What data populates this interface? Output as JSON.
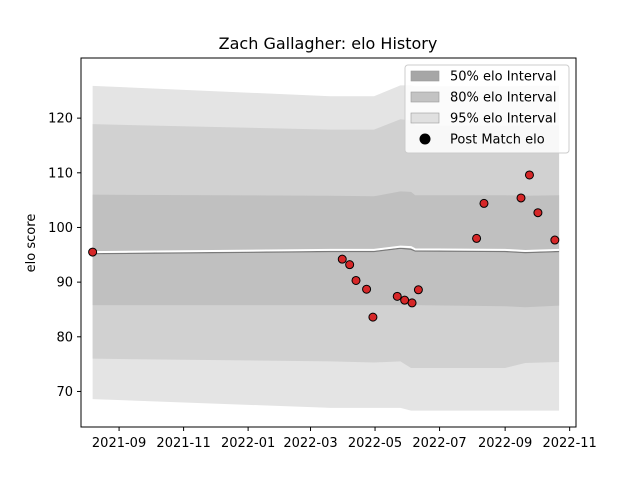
{
  "chart_data": {
    "type": "line",
    "title": "Zach Gallagher: elo History",
    "xlabel": "",
    "ylabel": "elo score",
    "xlim": [
      "2021-07-27",
      "2022-11-07"
    ],
    "ylim": [
      63.5,
      131
    ],
    "x_ticks": [
      "2021-09",
      "2021-11",
      "2022-01",
      "2022-03",
      "2022-05",
      "2022-07",
      "2022-09",
      "2022-11"
    ],
    "y_ticks": [
      70,
      80,
      90,
      100,
      110,
      120
    ],
    "grid": false,
    "legend_position": "top-right",
    "bands": {
      "x": [
        "2021-08-07",
        "2022-03-20",
        "2022-04-30",
        "2022-05-25",
        "2022-06-04",
        "2022-06-08",
        "2022-09-01",
        "2022-09-20",
        "2022-10-22"
      ],
      "mean": [
        95.5,
        95.9,
        95.9,
        96.5,
        96.4,
        96.0,
        95.9,
        95.7,
        95.9
      ],
      "p50_lower": [
        95.2,
        95.6,
        95.6,
        96.2,
        96.0,
        95.7,
        95.6,
        95.4,
        95.6
      ],
      "p50_upper": [
        106.0,
        105.8,
        105.7,
        106.6,
        106.5,
        105.9,
        105.9,
        105.8,
        105.9
      ],
      "p80_lower": [
        85.8,
        85.8,
        85.8,
        85.8,
        85.8,
        85.8,
        85.6,
        85.4,
        85.7
      ],
      "p80_upper": [
        118.9,
        117.9,
        117.9,
        119.8,
        119.6,
        118.7,
        118.6,
        118.7,
        118.7
      ],
      "p95_lower": [
        76.0,
        75.5,
        75.3,
        75.5,
        74.3,
        74.3,
        74.3,
        75.2,
        75.4
      ],
      "p95_upper": [
        125.9,
        124.0,
        124.0,
        126.0,
        126.0,
        125.8,
        125.8,
        125.9,
        125.9
      ],
      "p95_lower_outer": [
        68.6,
        67.0,
        67.0,
        67.0,
        66.5,
        66.5,
        66.5,
        66.5,
        66.5
      ]
    },
    "series": [
      {
        "name": "Post Match elo",
        "x": [
          "2021-08-07",
          "2022-03-31",
          "2022-04-07",
          "2022-04-13",
          "2022-04-23",
          "2022-04-29",
          "2022-05-22",
          "2022-05-29",
          "2022-06-05",
          "2022-06-11",
          "2022-08-05",
          "2022-08-12",
          "2022-09-16",
          "2022-09-24",
          "2022-10-02",
          "2022-10-18"
        ],
        "values": [
          95.5,
          94.2,
          93.2,
          90.3,
          88.7,
          83.6,
          87.4,
          86.7,
          86.2,
          88.6,
          98.0,
          104.4,
          105.4,
          109.6,
          102.7,
          97.7
        ]
      }
    ],
    "legend": [
      {
        "label": "50% elo Interval",
        "color": "#a6a6a6"
      },
      {
        "label": "80% elo Interval",
        "color": "#c3c3c3"
      },
      {
        "label": "95% elo Interval",
        "color": "#e0e0e0"
      },
      {
        "label": "Post Match elo",
        "color": "#000000"
      }
    ],
    "marker_color": "#d62728",
    "marker_edge": "#000000",
    "mean_line_color": "#ffffff"
  }
}
